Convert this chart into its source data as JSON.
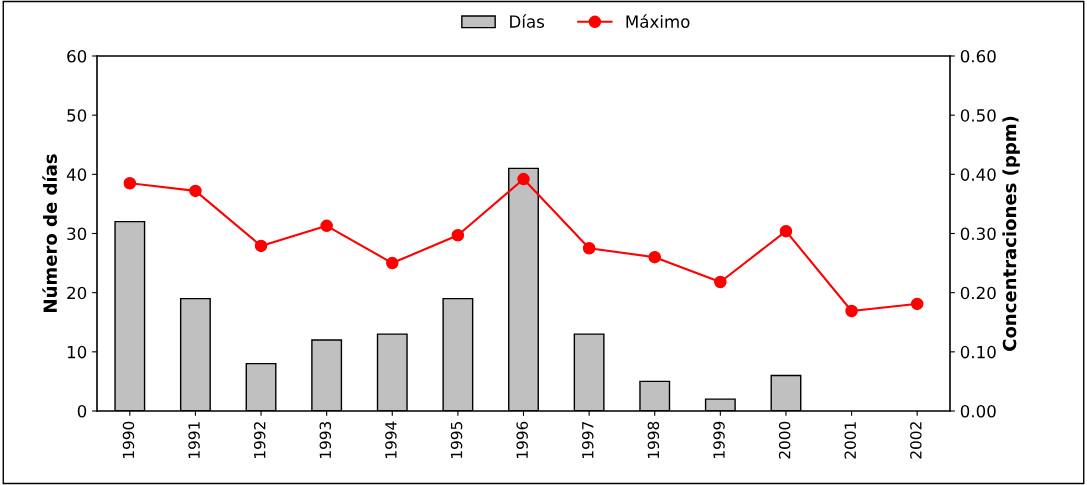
{
  "chart_data": {
    "type": "bar",
    "categories": [
      "1990",
      "1991",
      "1992",
      "1993",
      "1994",
      "1995",
      "1996",
      "1997",
      "1998",
      "1999",
      "2000",
      "2001",
      "2002"
    ],
    "series": [
      {
        "name": "Días",
        "color": "#c0c0c0",
        "values": [
          32,
          19,
          8,
          12,
          13,
          19,
          41,
          13,
          5,
          2,
          6,
          null,
          null
        ]
      },
      {
        "name": "Máximo",
        "type": "line",
        "axis": "y2",
        "color": "#ff0000",
        "marker": "circle",
        "values": [
          0.385,
          0.372,
          0.279,
          0.313,
          0.25,
          0.297,
          0.392,
          0.275,
          0.26,
          0.218,
          0.304,
          0.169,
          0.181
        ]
      }
    ],
    "ylabel": "Número de días",
    "y2label": "Concentraciones (ppm)",
    "ylim": [
      0,
      60
    ],
    "yticks": [
      0,
      10,
      20,
      30,
      40,
      50,
      60
    ],
    "y2lim": [
      0,
      0.6
    ],
    "y2ticks": [
      {
        "value": 0,
        "label": "0.00"
      },
      {
        "value": 0.1,
        "label": "0.10"
      },
      {
        "value": 0.2,
        "label": "0.20"
      },
      {
        "value": 0.3,
        "label": "0.30"
      },
      {
        "value": 0.4,
        "label": "0.40"
      },
      {
        "value": 0.5,
        "label": "0.50"
      },
      {
        "value": 0.6,
        "label": "0.60"
      }
    ],
    "grid": false,
    "legend": "top"
  }
}
